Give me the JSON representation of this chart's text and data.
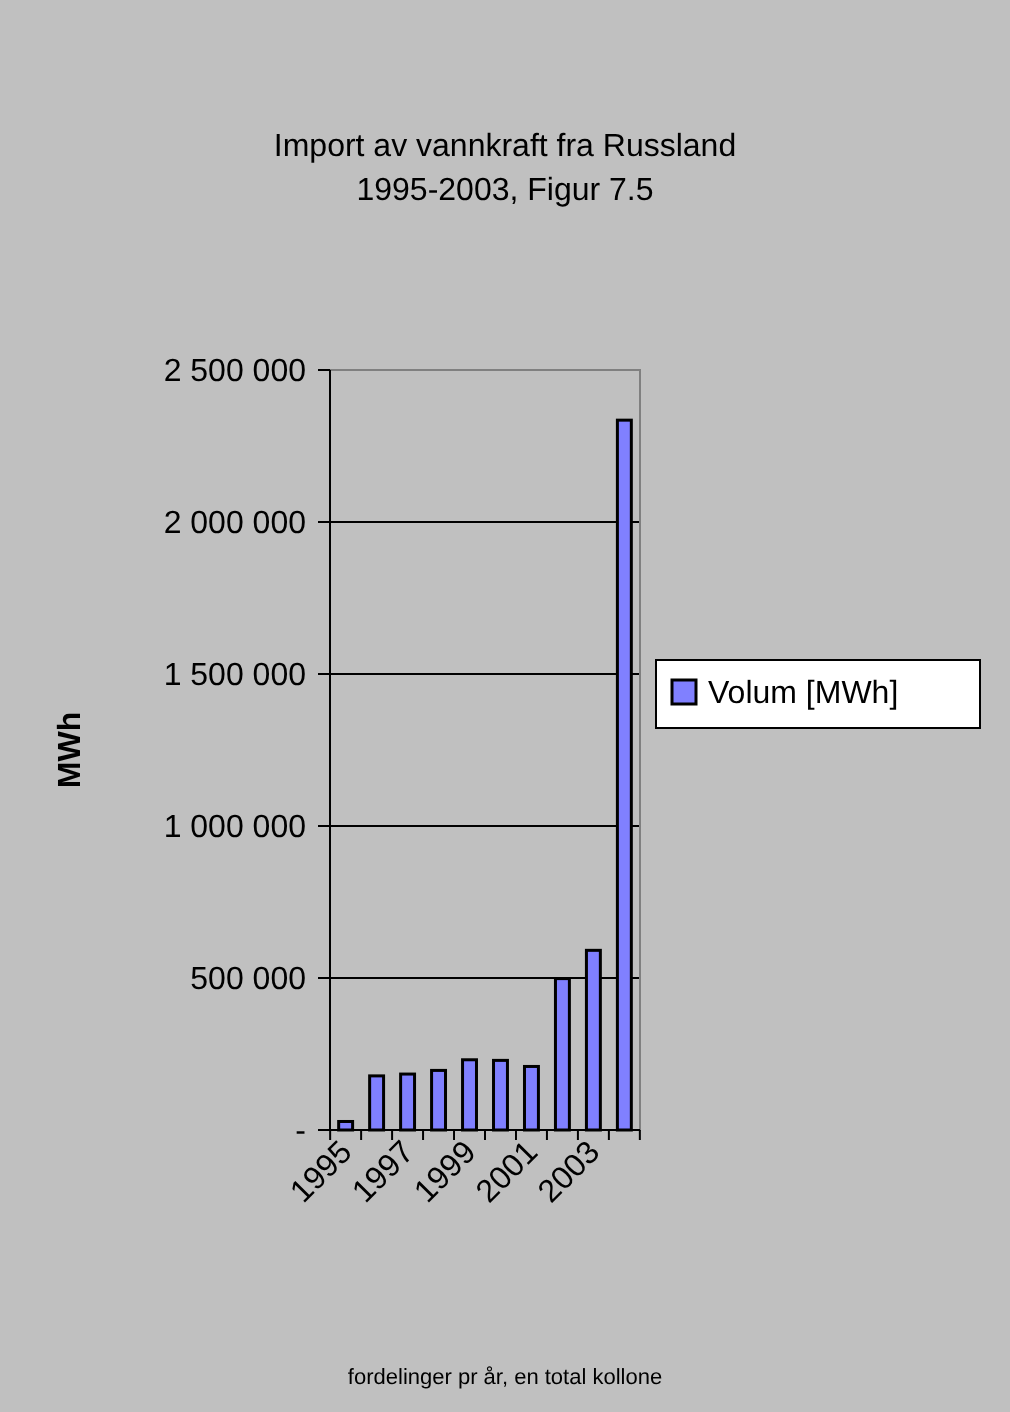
{
  "chart_data": {
    "type": "bar",
    "title": "Import av vannkraft fra Russland 1995-2003, Figur 7.5",
    "ylabel": "MWh",
    "categories": [
      "1995",
      null,
      "1997",
      null,
      "1999",
      null,
      "2001",
      null,
      "2003",
      null
    ],
    "series": [
      {
        "name": "Volum [MWh]",
        "color": "#8080ff",
        "values": [
          28000,
          178000,
          184000,
          196000,
          231000,
          229000,
          209000,
          498000,
          591000,
          2335000
        ]
      }
    ],
    "ylim": [
      0,
      2500000
    ],
    "yticks": [
      {
        "value": 0,
        "label": "-"
      },
      {
        "value": 500000,
        "label": "500 000"
      },
      {
        "value": 1000000,
        "label": "1 000 000"
      },
      {
        "value": 1500000,
        "label": "1 500 000"
      },
      {
        "value": 2000000,
        "label": "2 000 000"
      },
      {
        "value": 2500000,
        "label": "2 500 000"
      }
    ],
    "grid": "y",
    "legend": "right",
    "annotations": [
      "fordelinger pr år, en total kollone"
    ]
  }
}
